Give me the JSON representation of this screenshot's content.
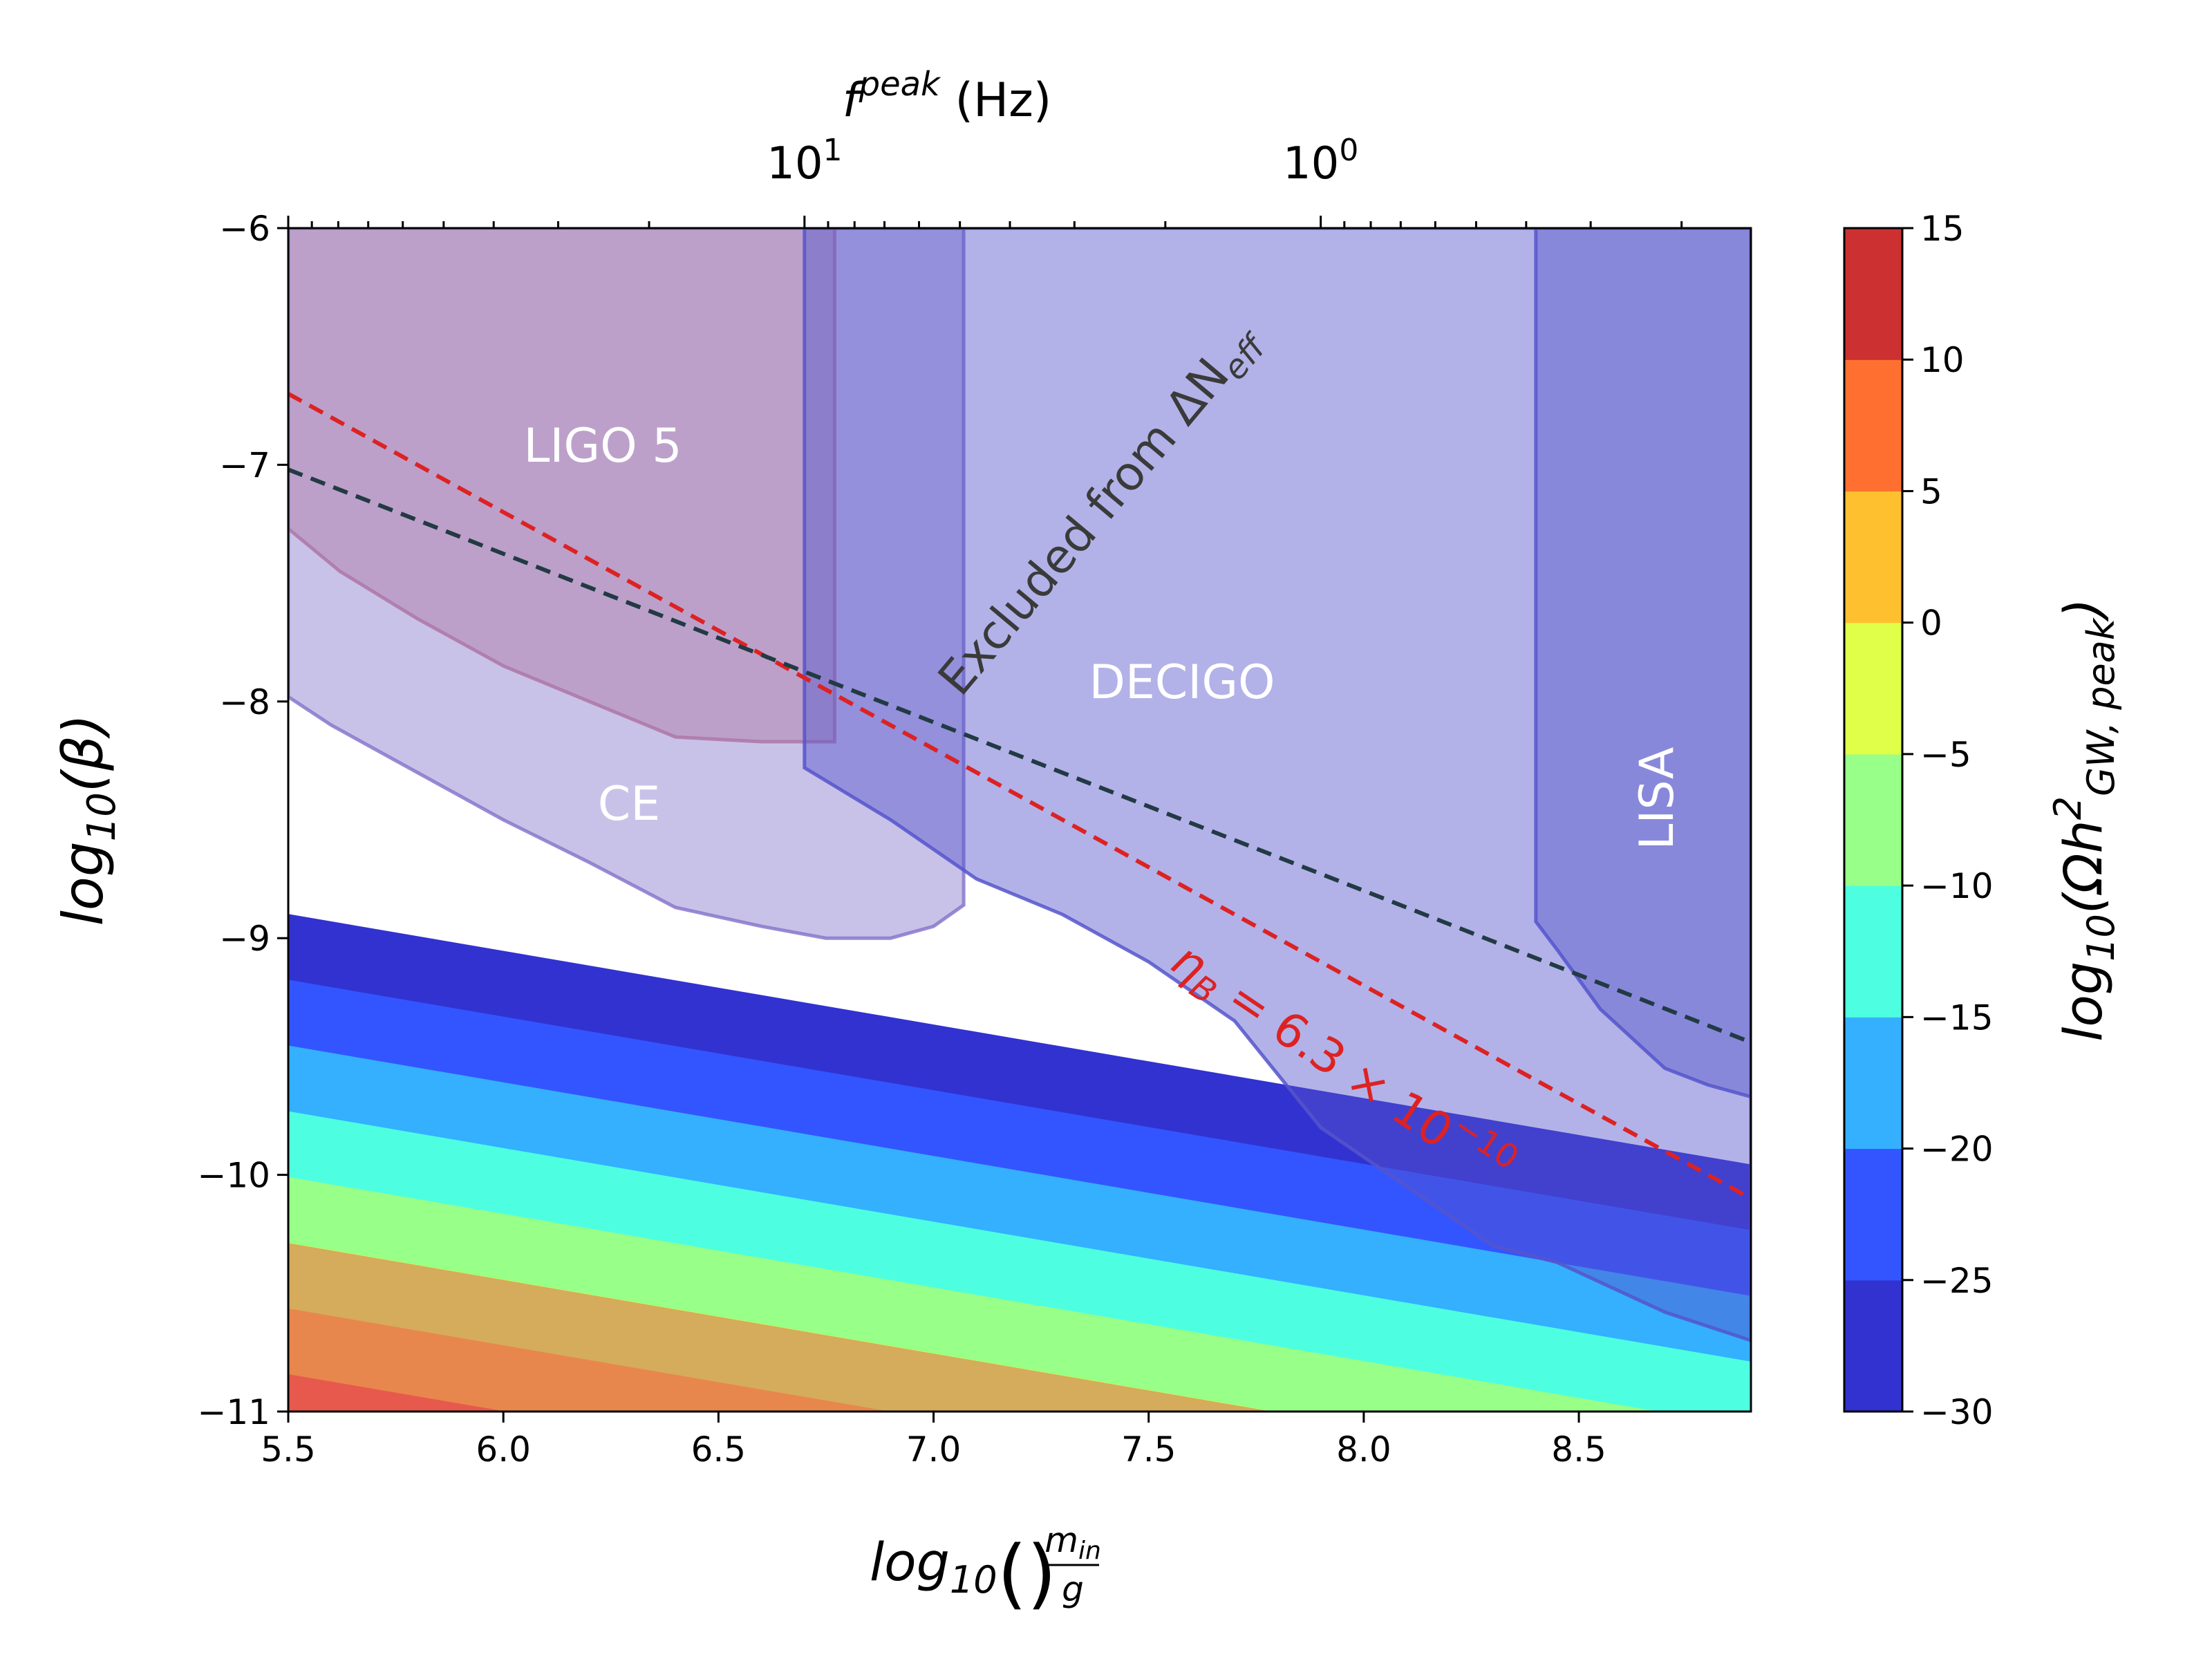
{
  "chart_data": {
    "type": "contour",
    "title": "",
    "xlabel": {
      "pre": "log",
      "sub": "10",
      "num": "m",
      "num_sub": "in",
      "den": "g"
    },
    "ylabel": {
      "pre": "log",
      "sub": "10",
      "arg": "(β)"
    },
    "top_xlabel": {
      "f": "f",
      "sup": "peak",
      "unit": " (Hz)"
    },
    "colorbar_label": {
      "pre": "log",
      "sub": "10",
      "arg1": "(Ωh",
      "sup": "2",
      "arg_sub": "GW, peak",
      "close": ")"
    },
    "xlim": [
      5.5,
      8.9
    ],
    "ylim": [
      -11,
      -6
    ],
    "x_ticks": [
      5.5,
      6.0,
      6.5,
      7.0,
      7.5,
      8.0,
      8.5
    ],
    "x_tick_labels": [
      "5.5",
      "6.0",
      "6.5",
      "7.0",
      "7.5",
      "8.0",
      "8.5"
    ],
    "y_ticks": [
      -6,
      -7,
      -8,
      -9,
      -10,
      -11
    ],
    "y_tick_labels": [
      "−6",
      "−7",
      "−8",
      "−9",
      "−10",
      "−11"
    ],
    "top_ticks": [
      {
        "x": 6.7,
        "base": "10",
        "exp": "1"
      },
      {
        "x": 7.9,
        "base": "10",
        "exp": "0"
      }
    ],
    "contour_levels": [
      -30,
      -25,
      -20,
      -15,
      -10,
      -5,
      0,
      5,
      10,
      15
    ],
    "level_colors": [
      "#3232d0",
      "#3355ff",
      "#34b0ff",
      "#4dffe0",
      "#98ff88",
      "#dfff48",
      "#ffc030",
      "#ff7030",
      "#cc3030"
    ],
    "colorbar_tick_labels": [
      "15",
      "10",
      "5",
      "0",
      "−5",
      "−10",
      "−15",
      "−20",
      "−25",
      "−30"
    ],
    "field_model": {
      "form": "a + b*x + c*y",
      "a": -159.39,
      "b": -5.6,
      "c": -18.0
    },
    "sensitivity_regions": [
      {
        "name": "LIGO 5",
        "color": "#cc7788",
        "outline": [
          [
            5.5,
            -7.27
          ],
          [
            5.62,
            -7.45
          ],
          [
            5.8,
            -7.65
          ],
          [
            6.0,
            -7.85
          ],
          [
            6.2,
            -8.0
          ],
          [
            6.4,
            -8.15
          ],
          [
            6.5,
            -8.16
          ],
          [
            6.6,
            -8.17
          ],
          [
            6.77,
            -8.17
          ],
          [
            6.77,
            -6
          ],
          [
            5.5,
            -6
          ]
        ]
      },
      {
        "name": "CE",
        "color": "#8877cc",
        "outline": [
          [
            5.5,
            -7.98
          ],
          [
            5.6,
            -8.1
          ],
          [
            5.8,
            -8.3
          ],
          [
            6.0,
            -8.5
          ],
          [
            6.2,
            -8.68
          ],
          [
            6.4,
            -8.87
          ],
          [
            6.6,
            -8.95
          ],
          [
            6.75,
            -9.0
          ],
          [
            6.9,
            -9.0
          ],
          [
            7.0,
            -8.95
          ],
          [
            7.07,
            -8.86
          ],
          [
            7.07,
            -6
          ],
          [
            5.5,
            -6
          ]
        ]
      },
      {
        "name": "DECIGO",
        "color": "#5555cc",
        "outline": [
          [
            6.7,
            -8.28
          ],
          [
            6.9,
            -8.5
          ],
          [
            7.1,
            -8.75
          ],
          [
            7.3,
            -8.9
          ],
          [
            7.5,
            -9.1
          ],
          [
            7.7,
            -9.35
          ],
          [
            7.9,
            -9.8
          ],
          [
            8.1,
            -10.05
          ],
          [
            8.3,
            -10.3
          ],
          [
            8.45,
            -10.37
          ],
          [
            8.7,
            -10.58
          ],
          [
            8.9,
            -10.7
          ],
          [
            8.9,
            -6
          ],
          [
            6.7,
            -6
          ]
        ]
      },
      {
        "name": "LISA",
        "color": "#5555cc",
        "outline": [
          [
            8.4,
            -8.93
          ],
          [
            8.45,
            -9.05
          ],
          [
            8.55,
            -9.3
          ],
          [
            8.7,
            -9.55
          ],
          [
            8.8,
            -9.62
          ],
          [
            8.9,
            -9.67
          ],
          [
            8.9,
            -6
          ],
          [
            8.4,
            -6
          ]
        ]
      }
    ],
    "excluded_region": {
      "name": "Excluded from ΔN_eff",
      "color": "#c83a78",
      "level": -5
    },
    "lines": [
      {
        "name": "eta_B",
        "label": "η",
        "label_sub": "B",
        "label_rest": " = 6.3 × 10",
        "label_sup": "−10",
        "color": "#dd2222",
        "style": "dashed",
        "points": [
          [
            5.5,
            -6.7
          ],
          [
            8.9,
            -10.1
          ]
        ]
      },
      {
        "name": "boundary",
        "color": "#223a44",
        "style": "dashed",
        "points": [
          [
            5.5,
            -7.02
          ],
          [
            8.9,
            -9.44
          ]
        ]
      }
    ],
    "annotations": {
      "ligo": "LIGO 5",
      "ce": "CE",
      "decigo": "DECIGO",
      "lisa": "LISA",
      "excluded_main": "Excluded from ΔN",
      "excluded_sub": "eff"
    }
  }
}
